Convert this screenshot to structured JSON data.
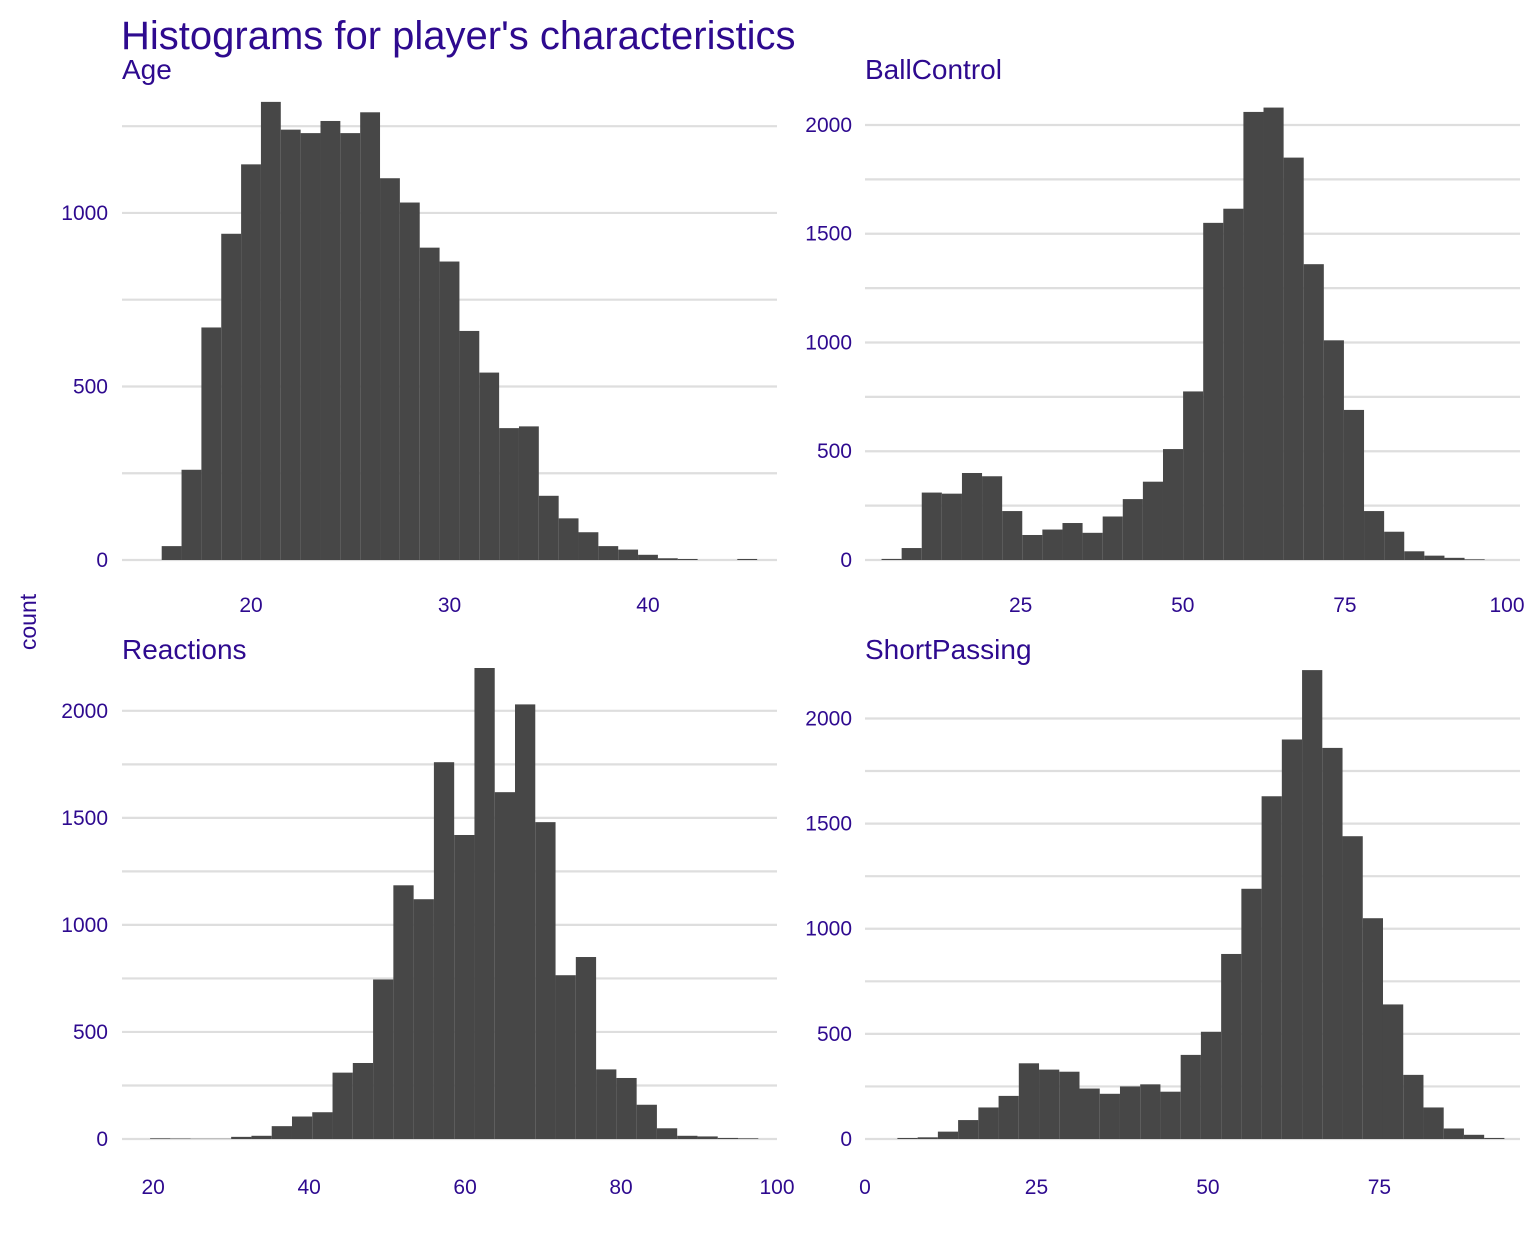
{
  "title": "Histograms for player's characteristics",
  "ylabel": "count",
  "colors": {
    "text": "#2e0a8f",
    "bar": "#474747",
    "grid": "#dedede",
    "background": "#ffffff"
  },
  "chart_data": [
    {
      "type": "bar",
      "title": "Age",
      "bin_width": 1,
      "x": [
        16,
        17,
        18,
        19,
        20,
        21,
        22,
        23,
        24,
        25,
        26,
        27,
        28,
        29,
        30,
        31,
        32,
        33,
        34,
        35,
        36,
        37,
        38,
        39,
        40,
        41,
        42,
        43,
        44,
        45
      ],
      "values": [
        40,
        260,
        670,
        940,
        1140,
        1320,
        1240,
        1230,
        1265,
        1230,
        1290,
        1100,
        1030,
        900,
        860,
        660,
        540,
        380,
        385,
        185,
        120,
        80,
        40,
        30,
        15,
        5,
        3,
        0,
        0,
        3
      ],
      "xlim": [
        13.5,
        46.5
      ],
      "ylim": [
        0,
        1360
      ],
      "xticks": [
        20,
        30,
        40
      ],
      "yticks": [
        0,
        500,
        1000
      ],
      "grid": true
    },
    {
      "type": "bar",
      "title": "BallControl",
      "bin_width": 3.1,
      "x": [
        5.1,
        8.2,
        11.3,
        14.4,
        17.5,
        20.6,
        23.7,
        26.8,
        29.9,
        33,
        36.1,
        39.2,
        42.3,
        45.4,
        48.5,
        51.6,
        54.7,
        57.8,
        60.9,
        64,
        67.1,
        70.2,
        73.3,
        76.4,
        79.5,
        82.6,
        85.7,
        88.8,
        91.9,
        95
      ],
      "values": [
        5,
        55,
        310,
        305,
        400,
        385,
        225,
        115,
        140,
        170,
        125,
        200,
        280,
        360,
        510,
        775,
        1550,
        1615,
        2060,
        2080,
        1850,
        1360,
        1010,
        690,
        225,
        130,
        40,
        20,
        10,
        3
      ],
      "xlim": [
        1,
        102
      ],
      "ylim": [
        0,
        2170
      ],
      "xticks": [
        25,
        50,
        75,
        100
      ],
      "yticks": [
        0,
        500,
        1000,
        1500,
        2000
      ],
      "grid": true
    },
    {
      "type": "bar",
      "title": "Reactions",
      "bin_width": 2.6,
      "x": [
        20.9,
        23.5,
        26.1,
        28.7,
        31.3,
        33.9,
        36.5,
        39.1,
        41.7,
        44.3,
        46.9,
        49.5,
        52.1,
        54.7,
        57.3,
        59.9,
        62.5,
        65.1,
        67.7,
        70.3,
        72.9,
        75.5,
        78.1,
        80.7,
        83.3,
        85.9,
        88.5,
        91.1,
        93.7,
        96.3
      ],
      "values": [
        3,
        2,
        1,
        1,
        10,
        15,
        60,
        105,
        125,
        310,
        355,
        745,
        1185,
        1120,
        1760,
        1420,
        2200,
        1620,
        2030,
        1480,
        765,
        850,
        325,
        285,
        160,
        50,
        15,
        12,
        5,
        3
      ],
      "xlim": [
        16,
        100
      ],
      "ylim": [
        0,
        2200
      ],
      "xticks": [
        20,
        40,
        60,
        80,
        100
      ],
      "yticks": [
        0,
        500,
        1000,
        1500,
        2000
      ],
      "grid": true
    },
    {
      "type": "bar",
      "title": "ShortPassing",
      "bin_width": 2.95,
      "x": [
        6.2,
        9.15,
        12.1,
        15.05,
        18,
        20.95,
        23.9,
        26.85,
        29.8,
        32.75,
        35.7,
        38.65,
        41.6,
        44.55,
        47.5,
        50.45,
        53.4,
        56.35,
        59.3,
        62.25,
        65.2,
        68.15,
        71.1,
        74.05,
        77,
        79.95,
        82.9,
        85.85,
        88.8,
        91.75
      ],
      "values": [
        5,
        8,
        35,
        90,
        150,
        205,
        360,
        330,
        320,
        240,
        215,
        250,
        260,
        225,
        400,
        510,
        880,
        1190,
        1630,
        1900,
        2230,
        1860,
        1440,
        1050,
        640,
        305,
        150,
        50,
        20,
        5
      ],
      "xlim": [
        0,
        95.5
      ],
      "ylim": [
        0,
        2240
      ],
      "xticks": [
        0,
        25,
        50,
        75
      ],
      "yticks": [
        0,
        500,
        1000,
        1500,
        2000
      ],
      "grid": true
    }
  ]
}
